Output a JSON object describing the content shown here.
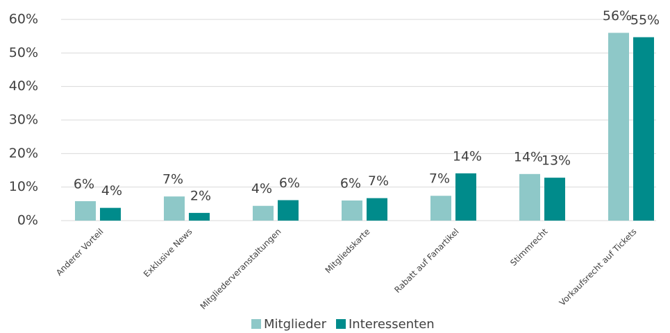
{
  "chart_data": {
    "type": "bar",
    "categories": [
      "Anderer Vorteil",
      "Exklusive News",
      "Mitgliederveranstaltungen",
      "Mitgliedskarte",
      "Rabatt auf Fanartikel",
      "Stimmrecht",
      "Vorkaufsrecht auf Tickets"
    ],
    "series": [
      {
        "name": "Mitglieder",
        "color": "#8ec8c8",
        "values": [
          5.8,
          7.2,
          4.4,
          6.0,
          7.4,
          13.9,
          56.0
        ],
        "value_labels": [
          "6%",
          "7%",
          "4%",
          "6%",
          "7%",
          "14%",
          "56%"
        ]
      },
      {
        "name": "Interessenten",
        "color": "#008b8b",
        "values": [
          3.8,
          2.3,
          6.1,
          6.7,
          14.1,
          12.8,
          54.7
        ],
        "value_labels": [
          "4%",
          "2%",
          "6%",
          "7%",
          "14%",
          "13%",
          "55%"
        ]
      }
    ],
    "ylim": [
      0,
      60
    ],
    "yticks": [
      {
        "value": 0,
        "label": "0%"
      },
      {
        "value": 10,
        "label": "10%"
      },
      {
        "value": 20,
        "label": "20%"
      },
      {
        "value": 30,
        "label": "30%"
      },
      {
        "value": 40,
        "label": "40%"
      },
      {
        "value": 50,
        "label": "50%"
      },
      {
        "value": 60,
        "label": "60%"
      }
    ],
    "grid": true,
    "legend": "bottom"
  }
}
